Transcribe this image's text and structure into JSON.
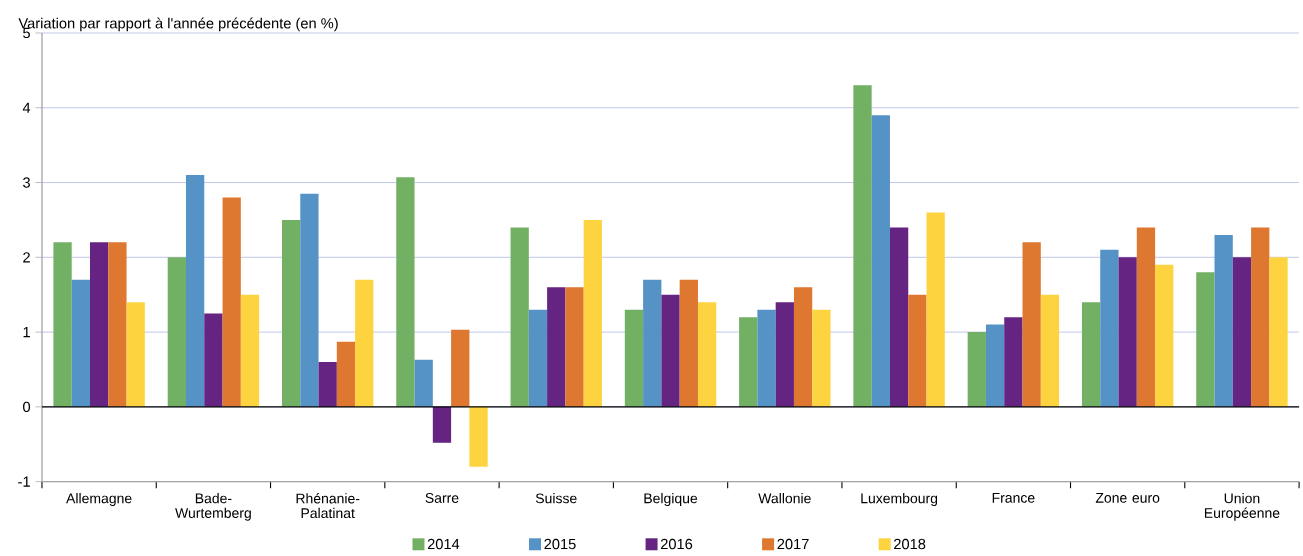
{
  "chart_data": {
    "type": "bar",
    "ylabel": "Variation par rapport à l'année précédente (en %)",
    "categories": [
      "Allemagne",
      "Bade-Wurtemberg",
      "Rhénanie-Palatinat",
      "Sarre",
      "Suisse",
      "Belgique",
      "Wallonie",
      "Luxembourg",
      "France",
      "Zone euro",
      "Union Européenne"
    ],
    "series": [
      {
        "name": "2014",
        "color": "#72b063",
        "values": [
          2.2,
          2.0,
          2.5,
          3.07,
          2.4,
          1.3,
          1.2,
          4.3,
          1.0,
          1.4,
          1.8
        ]
      },
      {
        "name": "2015",
        "color": "#5592c5",
        "values": [
          1.7,
          3.1,
          2.85,
          0.63,
          1.3,
          1.7,
          1.3,
          3.9,
          1.1,
          2.1,
          2.3
        ]
      },
      {
        "name": "2016",
        "color": "#652382",
        "values": [
          2.2,
          1.25,
          0.6,
          -0.48,
          1.6,
          1.5,
          1.4,
          2.4,
          1.2,
          2.0,
          2.0
        ]
      },
      {
        "name": "2017",
        "color": "#de772f",
        "values": [
          2.2,
          2.8,
          0.87,
          1.03,
          1.6,
          1.7,
          1.6,
          1.5,
          2.2,
          2.4,
          2.4
        ]
      },
      {
        "name": "2018",
        "color": "#fdd43f",
        "values": [
          1.4,
          1.5,
          1.7,
          -0.8,
          2.5,
          1.4,
          1.3,
          2.6,
          1.5,
          1.9,
          2.0
        ]
      }
    ],
    "ylim": [
      -1,
      5
    ],
    "yticks": [
      -1,
      0,
      1,
      2,
      3,
      4,
      5
    ],
    "grid": "y",
    "legend": "bottom"
  }
}
